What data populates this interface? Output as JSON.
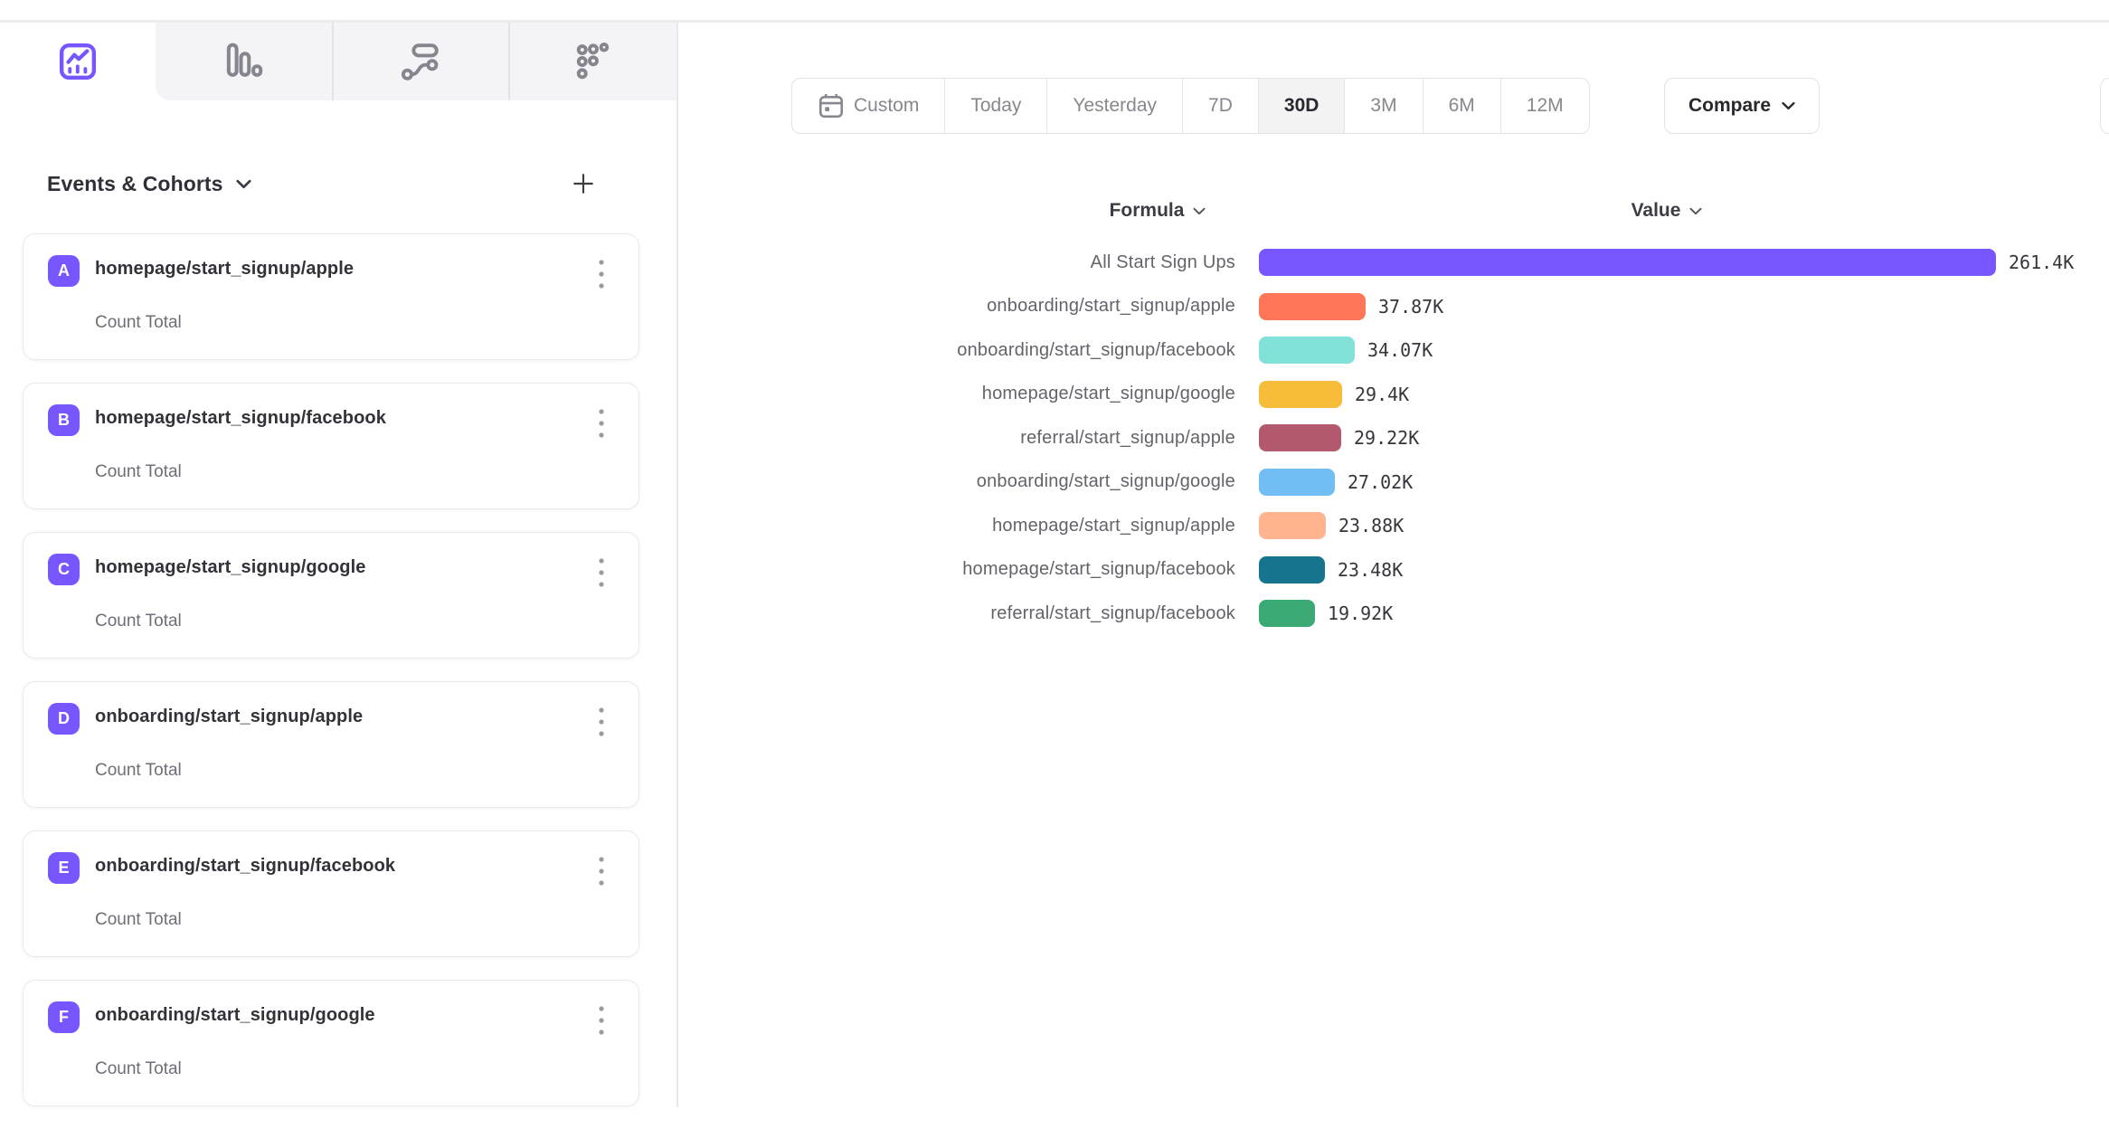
{
  "chart_tabs": {
    "items": [
      {
        "id": "insights",
        "icon": "line-chart-icon",
        "active": true
      },
      {
        "id": "bar",
        "icon": "bar-chart-icon",
        "active": false
      },
      {
        "id": "flows",
        "icon": "flows-icon",
        "active": false
      },
      {
        "id": "retention",
        "icon": "retention-dots-icon",
        "active": false
      }
    ]
  },
  "sidebar": {
    "title": "Events & Cohorts",
    "items": [
      {
        "badge": "A",
        "event": "homepage/start_signup/apple",
        "metric": "Count Total"
      },
      {
        "badge": "B",
        "event": "homepage/start_signup/facebook",
        "metric": "Count Total"
      },
      {
        "badge": "C",
        "event": "homepage/start_signup/google",
        "metric": "Count Total"
      },
      {
        "badge": "D",
        "event": "onboarding/start_signup/apple",
        "metric": "Count Total"
      },
      {
        "badge": "E",
        "event": "onboarding/start_signup/facebook",
        "metric": "Count Total"
      },
      {
        "badge": "F",
        "event": "onboarding/start_signup/google",
        "metric": "Count Total"
      }
    ]
  },
  "date_range": {
    "options": [
      "Custom",
      "Today",
      "Yesterday",
      "7D",
      "30D",
      "3M",
      "6M",
      "12M"
    ],
    "selected": "30D",
    "compare_label": "Compare"
  },
  "chart_data": {
    "type": "bar",
    "orientation": "horizontal",
    "formula_header": "Formula",
    "value_header": "Value",
    "max_value": 261400,
    "rows": [
      {
        "label": "All Start Sign Ups",
        "value": 261400,
        "display": "261.4K",
        "color": "#7856FF"
      },
      {
        "label": "onboarding/start_signup/apple",
        "value": 37870,
        "display": "37.87K",
        "color": "#FF7557"
      },
      {
        "label": "onboarding/start_signup/facebook",
        "value": 34070,
        "display": "34.07K",
        "color": "#80E1D9"
      },
      {
        "label": "homepage/start_signup/google",
        "value": 29400,
        "display": "29.4K",
        "color": "#F8BC3B"
      },
      {
        "label": "referral/start_signup/apple",
        "value": 29220,
        "display": "29.22K",
        "color": "#B2596E"
      },
      {
        "label": "onboarding/start_signup/google",
        "value": 27020,
        "display": "27.02K",
        "color": "#72BEF4"
      },
      {
        "label": "homepage/start_signup/apple",
        "value": 23880,
        "display": "23.88K",
        "color": "#FFB48F"
      },
      {
        "label": "homepage/start_signup/facebook",
        "value": 23480,
        "display": "23.48K",
        "color": "#17748F"
      },
      {
        "label": "referral/start_signup/facebook",
        "value": 19920,
        "display": "19.92K",
        "color": "#3BA974"
      }
    ]
  },
  "colors": {
    "accent": "#7856FF",
    "badge": "#7856FF",
    "tab_icon_inactive": "#85858d",
    "tab_strip_bg": "#f4f4f6"
  }
}
